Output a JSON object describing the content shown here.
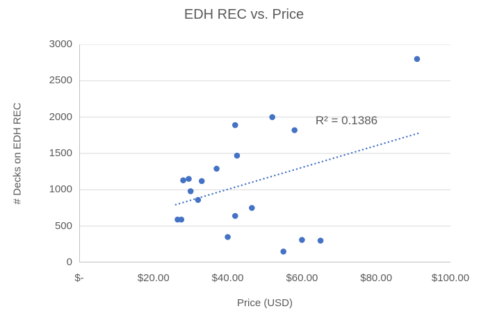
{
  "chart_data": {
    "type": "scatter",
    "title": "EDH REC vs. Price",
    "xlabel": "Price (USD)",
    "ylabel": "# Decks on EDH REC",
    "xlim": [
      0,
      100
    ],
    "ylim": [
      0,
      3000
    ],
    "grid": "horizontal",
    "legend": "none",
    "x_ticks": [
      {
        "label": "$-",
        "value": 0
      },
      {
        "label": "$20.00",
        "value": 20
      },
      {
        "label": "$40.00",
        "value": 40
      },
      {
        "label": "$60.00",
        "value": 60
      },
      {
        "label": "$80.00",
        "value": 80
      },
      {
        "label": "$100.00",
        "value": 100
      }
    ],
    "y_ticks": [
      {
        "label": "0",
        "value": 0
      },
      {
        "label": "500",
        "value": 500
      },
      {
        "label": "1000",
        "value": 1000
      },
      {
        "label": "1500",
        "value": 1500
      },
      {
        "label": "2000",
        "value": 2000
      },
      {
        "label": "2500",
        "value": 2500
      },
      {
        "label": "3000",
        "value": 3000
      }
    ],
    "points": [
      {
        "x": 91,
        "y": 2800
      },
      {
        "x": 52,
        "y": 2000
      },
      {
        "x": 42,
        "y": 1890
      },
      {
        "x": 58,
        "y": 1820
      },
      {
        "x": 42.5,
        "y": 1470
      },
      {
        "x": 37,
        "y": 1290
      },
      {
        "x": 29.5,
        "y": 1150
      },
      {
        "x": 28,
        "y": 1130
      },
      {
        "x": 33,
        "y": 1120
      },
      {
        "x": 30,
        "y": 980
      },
      {
        "x": 32,
        "y": 860
      },
      {
        "x": 46.5,
        "y": 750
      },
      {
        "x": 42,
        "y": 640
      },
      {
        "x": 26.5,
        "y": 590
      },
      {
        "x": 27.5,
        "y": 590
      },
      {
        "x": 40,
        "y": 350
      },
      {
        "x": 60,
        "y": 310
      },
      {
        "x": 65,
        "y": 300
      },
      {
        "x": 55,
        "y": 150
      }
    ],
    "trendline": {
      "style": "dotted-linear",
      "x1": 26,
      "y1": 795,
      "x2": 91.5,
      "y2": 1780
    },
    "annotation": {
      "text": "R² = 0.1386",
      "x": 72,
      "y": 1950
    },
    "colors": {
      "marker": "#4472C4",
      "trendline": "#4472C4",
      "gridline": "#D9D9D9",
      "axis_line": "#BFBFBF",
      "text": "#595959"
    }
  }
}
